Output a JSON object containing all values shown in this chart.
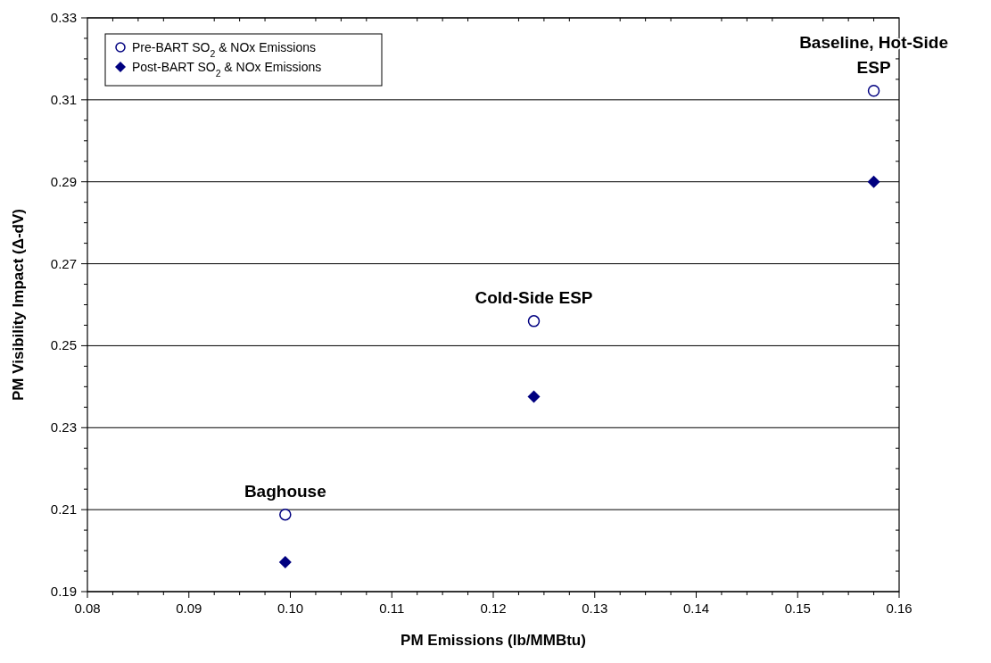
{
  "chart_data": {
    "type": "scatter",
    "xlabel": "PM Emissions (lb/MMBtu)",
    "ylabel": "PM Visibility Impact (Δ-dV)",
    "xlim": [
      0.08,
      0.16
    ],
    "xticks": [
      {
        "value": 0.08,
        "label": "0.08"
      },
      {
        "value": 0.09,
        "label": "0.09"
      },
      {
        "value": 0.1,
        "label": "0.10"
      },
      {
        "value": 0.11,
        "label": "0.11"
      },
      {
        "value": 0.12,
        "label": "0.12"
      },
      {
        "value": 0.13,
        "label": "0.13"
      },
      {
        "value": 0.14,
        "label": "0.14"
      },
      {
        "value": 0.15,
        "label": "0.15"
      },
      {
        "value": 0.16,
        "label": "0.16"
      }
    ],
    "ylim": [
      0.19,
      0.33
    ],
    "yticks": [
      0.19,
      0.21,
      0.23,
      0.25,
      0.27,
      0.29,
      0.31,
      0.33
    ],
    "grid": "y",
    "legend": "top left",
    "series": [
      {
        "name": "Pre-BART SO$_{2}$ & NOx Emissions",
        "color": "#000080",
        "marker": "circle",
        "x": [
          0.0995,
          0.124,
          0.1575
        ],
        "values": [
          0.2088,
          0.256,
          0.3122
        ]
      },
      {
        "name": "Post-BART SO$_{2}$ & NOx Emissions",
        "color": "#000080",
        "marker": "diamond",
        "x": [
          0.0995,
          0.124,
          0.1575
        ],
        "values": [
          0.1972,
          0.2376,
          0.29
        ]
      }
    ],
    "annotations": [
      {
        "text": "Baghouse",
        "x": 0.0995,
        "y": 0.2088
      },
      {
        "text": "Cold-Side ESP",
        "x": 0.124,
        "y": 0.256
      },
      {
        "text": "Baseline, Hot-Side ESP",
        "x": 0.1575,
        "y": 0.3122
      }
    ]
  }
}
